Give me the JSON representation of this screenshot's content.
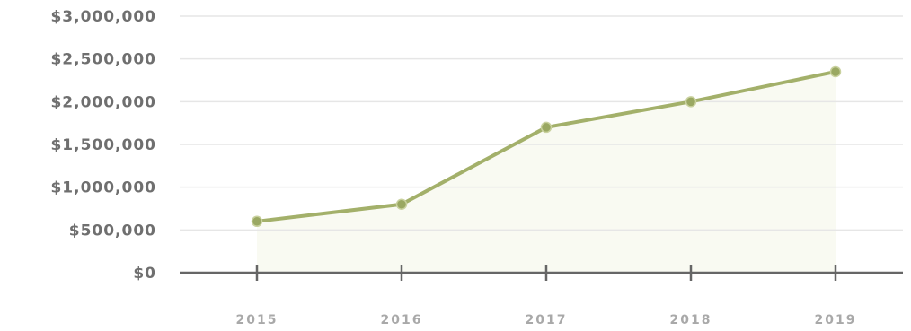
{
  "colors": {
    "line": "#a3b06a",
    "marker": "#9aa862",
    "gridline": "#e6e6e6",
    "axis": "#666666",
    "tick_text": "#6f6f6f",
    "x_text": "#a9a9a9"
  },
  "chart_data": {
    "type": "line",
    "categories": [
      "2015",
      "2016",
      "2017",
      "2018",
      "2019"
    ],
    "series": [
      {
        "values": [
          600000,
          800000,
          1700000,
          2000000,
          2350000
        ]
      }
    ],
    "y_ticks": [
      "$0",
      "$500,000",
      "$1,000,000",
      "$1,500,000",
      "$2,000,000",
      "$2,500,000",
      "$3,000,000"
    ],
    "ylim": [
      0,
      3000000
    ],
    "grid": true,
    "legend": "none"
  }
}
